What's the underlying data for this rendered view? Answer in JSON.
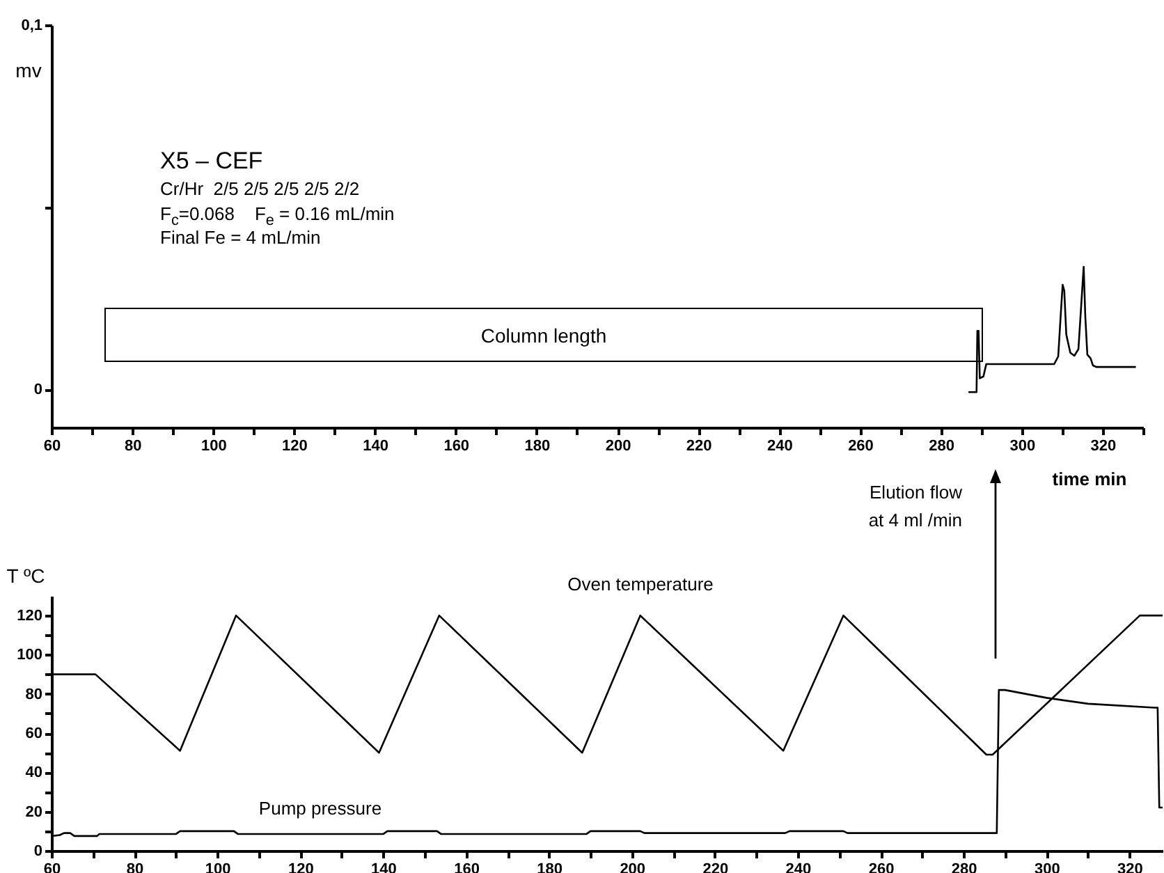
{
  "chart_data": [
    {
      "type": "line",
      "xlabel": "time  min",
      "ylabel": "mv",
      "xlim": [
        60,
        330
      ],
      "xticks": [
        60,
        {
          "value": 70,
          "label": null
        },
        80,
        {
          "value": 90,
          "label": null
        },
        100,
        {
          "value": 110,
          "label": null
        },
        120,
        {
          "value": 130,
          "label": null
        },
        140,
        {
          "value": 150,
          "label": null
        },
        160,
        {
          "value": 170,
          "label": null
        },
        180,
        {
          "value": 190,
          "label": null
        },
        200,
        {
          "value": 210,
          "label": null
        },
        220,
        {
          "value": 230,
          "label": null
        },
        240,
        {
          "value": 250,
          "label": null
        },
        260,
        {
          "value": 270,
          "label": null
        },
        280,
        {
          "value": 290,
          "label": null
        },
        300,
        {
          "value": 310,
          "label": null
        },
        320,
        {
          "value": 330,
          "label": null
        }
      ],
      "ylim": [
        -0.0105,
        0.1
      ],
      "yticks": [
        0,
        {
          "value": 0.05,
          "label": null
        },
        {
          "value": 0.1,
          "label": "0,1"
        }
      ],
      "series": [
        {
          "color": "#000000",
          "x": [
            286.8,
            288.8,
            289.0,
            289.3,
            289.6,
            290.5,
            291.2,
            308,
            309,
            309.6,
            310.1,
            310.5,
            311,
            312,
            313,
            314,
            314.8,
            315.3,
            315.7,
            316.2,
            317,
            317.6,
            318.5,
            328.2
          ],
          "values": [
            -0.0008,
            -0.0008,
            0.016,
            0.016,
            0.003,
            0.0035,
            0.0069,
            0.0069,
            0.009,
            0.02,
            0.0287,
            0.027,
            0.015,
            0.01,
            0.0092,
            0.011,
            0.025,
            0.0336,
            0.02,
            0.0095,
            0.0085,
            0.0065,
            0.0061,
            0.0061
          ]
        }
      ],
      "annotations": [
        "X5 – CEF",
        "Cr/Hr  2/5 2/5 2/5 2/5 2/2",
        "F$_{c}$=0.068    F$_{e}$ = 0.16 mL/min",
        "Final Fe = 4 mL/min",
        "Column length"
      ]
    },
    {
      "type": "line",
      "ylabel": "T ºC",
      "xlim": [
        60,
        328
      ],
      "xticks": [
        60,
        {
          "value": 70,
          "label": null
        },
        80,
        {
          "value": 90,
          "label": null
        },
        100,
        {
          "value": 110,
          "label": null
        },
        120,
        {
          "value": 130,
          "label": null
        },
        140,
        {
          "value": 150,
          "label": null
        },
        160,
        {
          "value": 170,
          "label": null
        },
        180,
        {
          "value": 190,
          "label": null
        },
        200,
        {
          "value": 210,
          "label": null
        },
        220,
        {
          "value": 230,
          "label": null
        },
        240,
        {
          "value": 250,
          "label": null
        },
        260,
        {
          "value": 270,
          "label": null
        },
        280,
        {
          "value": 290,
          "label": null
        },
        300,
        {
          "value": 310,
          "label": null
        },
        320
      ],
      "ylim": [
        0,
        130
      ],
      "yticks": [
        0,
        {
          "value": 10,
          "label": null
        },
        20,
        {
          "value": 30,
          "label": null
        },
        40,
        {
          "value": 50,
          "label": null
        },
        60,
        {
          "value": 70,
          "label": null
        },
        80,
        {
          "value": 90,
          "label": null
        },
        100,
        {
          "value": 110,
          "label": null
        },
        120
      ],
      "series": [
        {
          "name": "Oven temperature",
          "color": "#000000",
          "x": [
            60,
            70.6,
            91,
            104.5,
            139,
            153.5,
            188,
            202,
            236.5,
            251,
            285.5,
            287,
            322.5,
            328
          ],
          "values": [
            90,
            90,
            51,
            120,
            50,
            120,
            50,
            120,
            51,
            120,
            49,
            49,
            120,
            120
          ]
        },
        {
          "name": "Pump pressure",
          "color": "#000000",
          "x": [
            60,
            62,
            63,
            64.5,
            65.5,
            71,
            71.5,
            90,
            91,
            104,
            105,
            140,
            141,
            153,
            154,
            189,
            190,
            202,
            203,
            237,
            238,
            251,
            252,
            288,
            288.5,
            290,
            300,
            310,
            326,
            326.8,
            327.2,
            328
          ],
          "values": [
            7.5,
            8,
            9,
            9,
            7.5,
            7.5,
            8.5,
            8.5,
            10,
            10,
            8.5,
            8.5,
            10,
            10,
            8.5,
            8.5,
            10,
            10,
            9,
            9,
            10,
            10,
            9,
            9,
            82,
            82,
            78,
            75,
            73,
            73,
            22,
            22
          ]
        }
      ],
      "annotations": [
        "Elution flow at 4 ml /min"
      ]
    }
  ]
}
